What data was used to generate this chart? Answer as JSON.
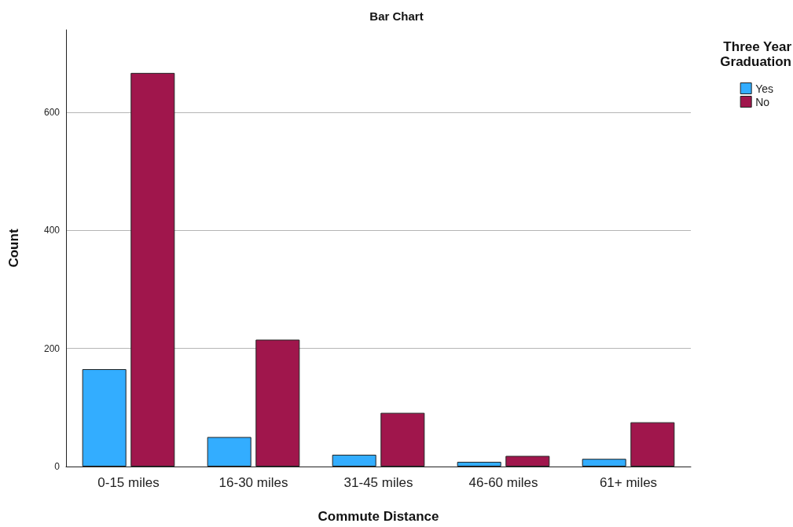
{
  "chart_data": {
    "type": "bar",
    "title": "Bar Chart",
    "xlabel": "Commute Distance",
    "ylabel": "Count",
    "legend_title": "Three Year Graduation",
    "categories": [
      "0-15 miles",
      "16-30 miles",
      "31-45 miles",
      "46-60 miles",
      "61+ miles"
    ],
    "series": [
      {
        "name": "Yes",
        "color": "#33adff",
        "values": [
          165,
          50,
          20,
          8,
          13
        ]
      },
      {
        "name": "No",
        "color": "#a0164c",
        "values": [
          667,
          215,
          91,
          18,
          75
        ]
      }
    ],
    "ylim": [
      0,
      740
    ],
    "yticks": [
      0,
      200,
      400,
      600
    ],
    "grid": "y",
    "legend": "top right"
  }
}
